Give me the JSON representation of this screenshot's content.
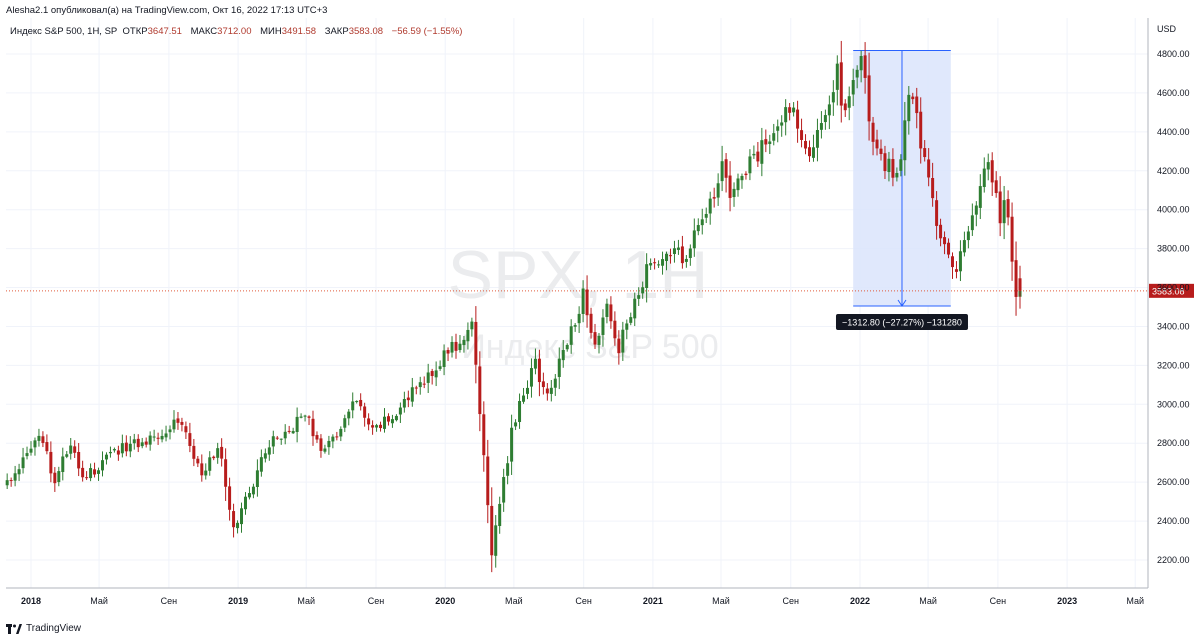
{
  "header": {
    "published_by": "Alesha2.1 опубликовал(а) на TradingView.com, Окт 16, 2022 17:13 UTC+3"
  },
  "legend": {
    "symbol": "Индекс S&P 500, 1Н, SP",
    "open_label": "ОТКР",
    "open": "3647.51",
    "high_label": "МАКС",
    "high": "3712.00",
    "low_label": "МИН",
    "low": "3491.58",
    "close_label": "ЗАКР",
    "close": "3583.08",
    "change": "−56.59 (−1.55%)"
  },
  "watermark": {
    "ticker": "SPX, 1Н",
    "name": "Индекс S&P 500"
  },
  "footer": {
    "brand": "TradingView"
  },
  "colors": {
    "up": "#26a69a",
    "up_dark": "#2e7d32",
    "down": "#b71c1c",
    "measure_fill": "#dbe4fb",
    "measure_line": "#2962ff",
    "price_line": "#e05a3a"
  },
  "chart_data": {
    "type": "candlestick",
    "title": "",
    "currency_label": "USD",
    "y_ticks": [
      2200,
      2400,
      2600,
      2800,
      3000,
      3200,
      3400,
      3600,
      3800,
      4000,
      4200,
      4400,
      4600,
      4800
    ],
    "y_tick_labels": [
      "2200.00",
      "2400.00",
      "2600.00",
      "2800.00",
      "3000.00",
      "3200.00",
      "3400.00",
      "3600.00",
      "3800.00",
      "4000.00",
      "4200.00",
      "4400.00",
      "4600.00",
      "4800.00"
    ],
    "ylim": [
      2000,
      4950
    ],
    "x_ticks": [
      {
        "date": "2018-01",
        "label": "2018"
      },
      {
        "date": "2018-05",
        "label": "Май"
      },
      {
        "date": "2018-09",
        "label": "Сен"
      },
      {
        "date": "2019-01",
        "label": "2019"
      },
      {
        "date": "2019-05",
        "label": "Май"
      },
      {
        "date": "2019-09",
        "label": "Сен"
      },
      {
        "date": "2020-01",
        "label": "2020"
      },
      {
        "date": "2020-05",
        "label": "Май"
      },
      {
        "date": "2020-09",
        "label": "Сен"
      },
      {
        "date": "2021-01",
        "label": "2021"
      },
      {
        "date": "2021-05",
        "label": "Май"
      },
      {
        "date": "2021-09",
        "label": "Сен"
      },
      {
        "date": "2022-01",
        "label": "2022"
      },
      {
        "date": "2022-05",
        "label": "Май"
      },
      {
        "date": "2022-09",
        "label": "Сен"
      },
      {
        "date": "2023-01",
        "label": "2023"
      },
      {
        "date": "2023-05",
        "label": "Май"
      }
    ],
    "last_price": 3583.08,
    "last_price_label": "3583.08",
    "measure": {
      "from_date": "2021-12-20",
      "to_date": "2022-06-10",
      "from_price": 4818,
      "to_price": 3505,
      "label": "−1312.80 (−27.27%) −131280"
    },
    "anchors": [
      [
        "2017-11-20",
        2600
      ],
      [
        "2018-01-26",
        2850
      ],
      [
        "2018-02-09",
        2580
      ],
      [
        "2018-03-09",
        2780
      ],
      [
        "2018-04-06",
        2620
      ],
      [
        "2018-06-08",
        2780
      ],
      [
        "2018-07-27",
        2820
      ],
      [
        "2018-09-21",
        2930
      ],
      [
        "2018-10-26",
        2650
      ],
      [
        "2018-11-30",
        2760
      ],
      [
        "2018-12-24",
        2350
      ],
      [
        "2019-02-22",
        2790
      ],
      [
        "2019-04-30",
        2945
      ],
      [
        "2019-06-03",
        2745
      ],
      [
        "2019-07-26",
        3020
      ],
      [
        "2019-08-23",
        2850
      ],
      [
        "2019-10-04",
        2950
      ],
      [
        "2019-12-27",
        3240
      ],
      [
        "2020-02-19",
        3390
      ],
      [
        "2020-03-23",
        2240
      ],
      [
        "2020-04-30",
        2900
      ],
      [
        "2020-06-08",
        3230
      ],
      [
        "2020-06-26",
        3010
      ],
      [
        "2020-09-02",
        3580
      ],
      [
        "2020-09-23",
        3240
      ],
      [
        "2020-10-12",
        3530
      ],
      [
        "2020-10-30",
        3270
      ],
      [
        "2020-12-31",
        3756
      ],
      [
        "2021-03-04",
        3770
      ],
      [
        "2021-05-07",
        4230
      ],
      [
        "2021-05-12",
        4060
      ],
      [
        "2021-09-02",
        4530
      ],
      [
        "2021-10-04",
        4300
      ],
      [
        "2021-11-22",
        4705
      ],
      [
        "2021-12-01",
        4510
      ],
      [
        "2022-01-03",
        4800
      ],
      [
        "2022-01-24",
        4300
      ],
      [
        "2022-03-08",
        4170
      ],
      [
        "2022-03-29",
        4630
      ],
      [
        "2022-05-20",
        3900
      ],
      [
        "2022-06-17",
        3640
      ],
      [
        "2022-08-16",
        4305
      ],
      [
        "2022-09-06",
        3900
      ],
      [
        "2022-09-13",
        4110
      ],
      [
        "2022-09-30",
        3585
      ],
      [
        "2022-10-14",
        3583
      ]
    ]
  }
}
